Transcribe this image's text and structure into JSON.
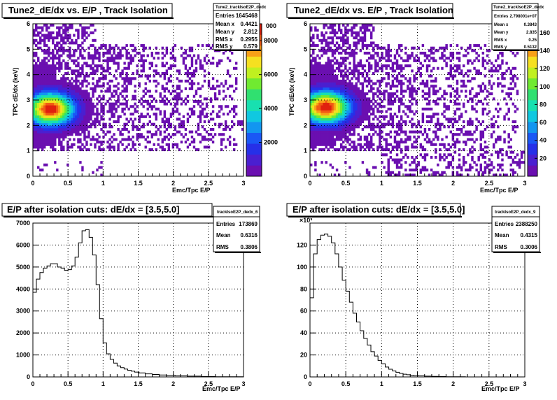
{
  "panels": [
    {
      "title": "Tune2_dE/dx vs. E/P , Track Isolation",
      "stats": {
        "name": "Tune2_trackIsoE2P_dedx",
        "rows": [
          [
            "Entries",
            "1645468"
          ],
          [
            "Mean x",
            "0.4421"
          ],
          [
            "Mean y",
            "2.812"
          ],
          [
            "RMS x",
            "0.2955"
          ],
          [
            "RMS y",
            "0.579"
          ]
        ]
      },
      "palette_labels": [
        "2000",
        "4000",
        "6000",
        "8000"
      ],
      "overflow_label": "000"
    },
    {
      "title": "Tune2_dE/dx vs. E/P , Track Isolation",
      "stats": {
        "name": "Tune2_trackIsoE2P_dedx",
        "rows": [
          [
            "Entries",
            "2.798001e+07"
          ],
          [
            "Mean x",
            "0.3843"
          ],
          [
            "Mean y",
            "2.835"
          ],
          [
            "RMS x",
            "0.25"
          ],
          [
            "RMS y",
            "0.5132"
          ]
        ]
      },
      "palette_labels": [
        "20",
        "40",
        "60",
        "80",
        "100",
        "120",
        "140",
        "160"
      ]
    },
    {
      "title": "E/P after isolation cuts: dE/dx = [3.5,5.0]",
      "stats": {
        "name": "trackIsoE2P_dedx_6",
        "rows": [
          [
            "Entries",
            "173869"
          ],
          [
            "Mean",
            "0.6316"
          ],
          [
            "RMS",
            "0.3806"
          ]
        ]
      }
    },
    {
      "title": "E/P after isolation cuts: dE/dx = [3.5,5.0]",
      "stats": {
        "name": "trackIsoE2P_dedx_9",
        "rows": [
          [
            "Entries",
            "2388250"
          ],
          [
            "Mean",
            "0.4315"
          ],
          [
            "RMS",
            "0.3006"
          ]
        ]
      },
      "exponent": "×10³"
    }
  ],
  "chart_data": [
    {
      "type": "heatmap",
      "title": "Tune2_dE/dx vs. E/P , Track Isolation",
      "xlabel": "Emc/Tpc  E/P",
      "ylabel": "TPC dE/dx (keV)",
      "xlim": [
        0,
        3
      ],
      "ylim": [
        0,
        6
      ],
      "xticks": [
        "0",
        "0.5",
        "1",
        "1.5",
        "2",
        "2.5",
        "3"
      ],
      "yticks": [
        "0",
        "1",
        "2",
        "3",
        "4",
        "5",
        "6"
      ],
      "zlim": [
        0,
        9000
      ],
      "peak": {
        "x": 0.25,
        "y": 2.65,
        "z": 9000
      },
      "grid": true
    },
    {
      "type": "heatmap",
      "title": "Tune2_dE/dx vs. E/P , Track Isolation",
      "xlabel": "Emc/Tpc  E/P",
      "ylabel": "TPC dE/dx (keV)",
      "xlim": [
        0,
        3
      ],
      "ylim": [
        0,
        6
      ],
      "xticks": [
        "0",
        "0.5",
        "1",
        "1.5",
        "2",
        "2.5",
        "3"
      ],
      "yticks": [
        "0",
        "1",
        "2",
        "3",
        "4",
        "5",
        "6"
      ],
      "zlim": [
        0,
        170
      ],
      "peak": {
        "x": 0.22,
        "y": 2.72,
        "z": 170
      },
      "grid": true
    },
    {
      "type": "line",
      "title": "E/P after isolation cuts: dE/dx = [3.5,5.0]",
      "xlabel": "Emc/Tpc  E/P",
      "xlim": [
        0,
        3
      ],
      "ylim": [
        0,
        7000
      ],
      "xticks": [
        "0",
        "0.5",
        "1",
        "1.5",
        "2",
        "2.5",
        "3"
      ],
      "yticks": [
        "0",
        "1000",
        "2000",
        "3000",
        "4000",
        "5000",
        "6000",
        "7000"
      ],
      "grid": true,
      "x": [
        0.025,
        0.075,
        0.125,
        0.175,
        0.225,
        0.275,
        0.325,
        0.375,
        0.425,
        0.475,
        0.525,
        0.575,
        0.625,
        0.675,
        0.725,
        0.775,
        0.825,
        0.875,
        0.925,
        0.975,
        1.025,
        1.075,
        1.125,
        1.175,
        1.225,
        1.275,
        1.325,
        1.375,
        1.425,
        1.475,
        1.55,
        1.65,
        1.75,
        1.85,
        1.95,
        2.1,
        2.3,
        2.5,
        2.7,
        2.9
      ],
      "values": [
        3850,
        4450,
        4750,
        4950,
        5050,
        5150,
        5150,
        5000,
        4950,
        4850,
        4880,
        5050,
        5450,
        6100,
        6650,
        6700,
        6350,
        5550,
        4200,
        2650,
        1550,
        1050,
        800,
        630,
        500,
        420,
        360,
        300,
        260,
        220,
        180,
        140,
        110,
        90,
        70,
        50,
        35,
        20,
        10,
        5
      ]
    },
    {
      "type": "line",
      "title": "E/P after isolation cuts: dE/dx = [3.5,5.0]",
      "xlabel": "Emc/Tpc  E/P",
      "xlim": [
        0,
        3
      ],
      "ylim": [
        0,
        140
      ],
      "xticks": [
        "0",
        "0.5",
        "1",
        "1.5",
        "2",
        "2.5",
        "3"
      ],
      "yticks": [
        "0",
        "20",
        "40",
        "60",
        "80",
        "100",
        "120"
      ],
      "grid": true,
      "x": [
        0.025,
        0.075,
        0.125,
        0.175,
        0.225,
        0.275,
        0.325,
        0.375,
        0.425,
        0.475,
        0.525,
        0.575,
        0.625,
        0.675,
        0.725,
        0.775,
        0.825,
        0.875,
        0.925,
        0.975,
        1.025,
        1.075,
        1.125,
        1.175,
        1.225,
        1.275,
        1.325,
        1.375,
        1.425,
        1.475,
        1.55,
        1.65,
        1.75,
        1.85,
        1.95,
        2.1
      ],
      "values": [
        72,
        112,
        125,
        129,
        130,
        128,
        122,
        112,
        100,
        88,
        78,
        68,
        58,
        50,
        42,
        35,
        29,
        23,
        19,
        15,
        12,
        9,
        7,
        5.5,
        4.2,
        3.2,
        2.5,
        2,
        1.6,
        1.3,
        1,
        0.7,
        0.5,
        0.35,
        0.2,
        0.1
      ]
    }
  ]
}
